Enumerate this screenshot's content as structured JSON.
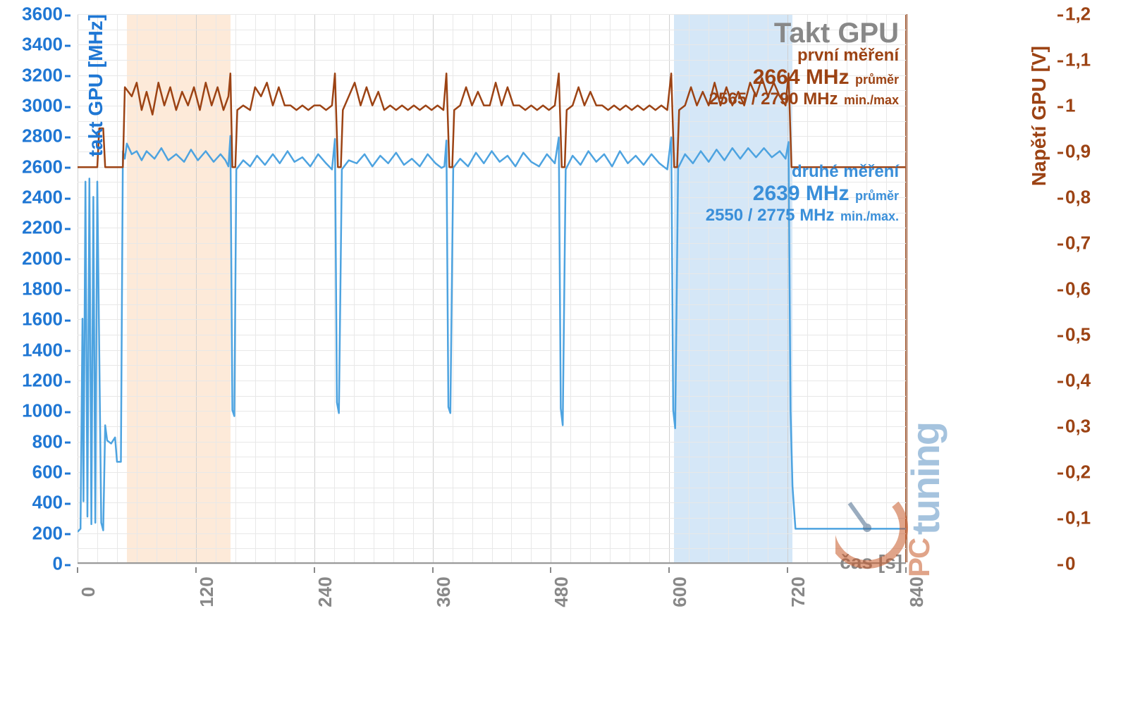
{
  "chart": {
    "type": "line",
    "title": "Takt GPU",
    "background_color": "#ffffff",
    "grid_color_minor": "#e8e8e8",
    "grid_color_major": "#d0d0d0",
    "x": {
      "label": "čas [s]",
      "min": 0,
      "max": 840,
      "major_step": 120,
      "minor_step": 20,
      "tick_color": "#888888",
      "tick_fontsize": 26
    },
    "y_left": {
      "label": "takt GPU [MHz]",
      "min": 0,
      "max": 3600,
      "step": 200,
      "minor_step": 100,
      "color": "#1f77d4",
      "tick_fontsize": 26
    },
    "y_right": {
      "label": "Napětí GPU [V]",
      "min": 0,
      "max": 1.2,
      "step": 0.1,
      "color": "#9c4314",
      "tick_fontsize": 26
    },
    "bands": [
      {
        "from": 50,
        "to": 155,
        "color": "rgba(250,195,145,0.35)"
      },
      {
        "from": 605,
        "to": 725,
        "color": "rgba(150,195,235,0.4)"
      }
    ],
    "annotations": {
      "first": {
        "color": "#9c4314",
        "heading": "první měření",
        "avg_value": "2664 MHz",
        "avg_label": "průměr",
        "range_value": "2565 / 2790 MHz",
        "range_label": "min./max"
      },
      "second": {
        "color": "#3a8fd9",
        "heading": "druhé měření",
        "avg_value": "2639 MHz",
        "avg_label": "průměr",
        "range_value": "2550 / 2775 MHz",
        "range_label": "min./max."
      }
    },
    "series_blue": {
      "name": "takt GPU (druhé)",
      "axis": "left",
      "color": "#4da3e0",
      "line_width": 2.5,
      "points": [
        [
          0,
          200
        ],
        [
          3,
          220
        ],
        [
          5,
          1600
        ],
        [
          6,
          400
        ],
        [
          8,
          2500
        ],
        [
          10,
          300
        ],
        [
          12,
          2520
        ],
        [
          14,
          250
        ],
        [
          16,
          2400
        ],
        [
          18,
          260
        ],
        [
          20,
          2500
        ],
        [
          24,
          260
        ],
        [
          26,
          210
        ],
        [
          28,
          900
        ],
        [
          30,
          800
        ],
        [
          34,
          780
        ],
        [
          38,
          820
        ],
        [
          40,
          660
        ],
        [
          44,
          660
        ],
        [
          46,
          2700
        ],
        [
          48,
          2650
        ],
        [
          50,
          2750
        ],
        [
          55,
          2680
        ],
        [
          60,
          2700
        ],
        [
          65,
          2640
        ],
        [
          70,
          2700
        ],
        [
          78,
          2650
        ],
        [
          85,
          2720
        ],
        [
          92,
          2640
        ],
        [
          100,
          2680
        ],
        [
          108,
          2630
        ],
        [
          115,
          2710
        ],
        [
          122,
          2640
        ],
        [
          130,
          2700
        ],
        [
          138,
          2630
        ],
        [
          145,
          2680
        ],
        [
          150,
          2640
        ],
        [
          153,
          2600
        ],
        [
          155,
          2800
        ],
        [
          157,
          1000
        ],
        [
          159,
          960
        ],
        [
          161,
          2580
        ],
        [
          168,
          2640
        ],
        [
          175,
          2600
        ],
        [
          182,
          2670
        ],
        [
          190,
          2610
        ],
        [
          198,
          2680
        ],
        [
          205,
          2620
        ],
        [
          213,
          2700
        ],
        [
          220,
          2630
        ],
        [
          228,
          2660
        ],
        [
          236,
          2600
        ],
        [
          244,
          2680
        ],
        [
          252,
          2620
        ],
        [
          258,
          2580
        ],
        [
          261,
          2780
        ],
        [
          263,
          1050
        ],
        [
          265,
          980
        ],
        [
          268,
          2580
        ],
        [
          275,
          2640
        ],
        [
          283,
          2620
        ],
        [
          291,
          2680
        ],
        [
          299,
          2600
        ],
        [
          307,
          2670
        ],
        [
          315,
          2620
        ],
        [
          323,
          2690
        ],
        [
          331,
          2610
        ],
        [
          339,
          2650
        ],
        [
          347,
          2600
        ],
        [
          355,
          2680
        ],
        [
          363,
          2620
        ],
        [
          369,
          2590
        ],
        [
          372,
          2600
        ],
        [
          374,
          2770
        ],
        [
          376,
          1020
        ],
        [
          378,
          980
        ],
        [
          381,
          2590
        ],
        [
          388,
          2650
        ],
        [
          396,
          2600
        ],
        [
          404,
          2690
        ],
        [
          412,
          2620
        ],
        [
          420,
          2700
        ],
        [
          428,
          2630
        ],
        [
          436,
          2670
        ],
        [
          444,
          2600
        ],
        [
          452,
          2690
        ],
        [
          460,
          2630
        ],
        [
          468,
          2600
        ],
        [
          476,
          2680
        ],
        [
          484,
          2620
        ],
        [
          488,
          2790
        ],
        [
          490,
          1010
        ],
        [
          492,
          900
        ],
        [
          495,
          2580
        ],
        [
          502,
          2670
        ],
        [
          510,
          2610
        ],
        [
          518,
          2700
        ],
        [
          526,
          2630
        ],
        [
          534,
          2680
        ],
        [
          542,
          2600
        ],
        [
          550,
          2700
        ],
        [
          558,
          2620
        ],
        [
          566,
          2670
        ],
        [
          574,
          2610
        ],
        [
          582,
          2680
        ],
        [
          590,
          2620
        ],
        [
          598,
          2580
        ],
        [
          602,
          2790
        ],
        [
          604,
          1000
        ],
        [
          606,
          880
        ],
        [
          609,
          2590
        ],
        [
          616,
          2680
        ],
        [
          624,
          2620
        ],
        [
          632,
          2700
        ],
        [
          640,
          2630
        ],
        [
          648,
          2710
        ],
        [
          656,
          2640
        ],
        [
          664,
          2720
        ],
        [
          672,
          2650
        ],
        [
          680,
          2720
        ],
        [
          688,
          2660
        ],
        [
          696,
          2720
        ],
        [
          704,
          2660
        ],
        [
          712,
          2700
        ],
        [
          718,
          2650
        ],
        [
          721,
          2760
        ],
        [
          723,
          1000
        ],
        [
          725,
          500
        ],
        [
          728,
          220
        ],
        [
          740,
          220
        ],
        [
          780,
          220
        ],
        [
          820,
          220
        ],
        [
          840,
          220
        ]
      ]
    },
    "series_brown": {
      "name": "napětí GPU",
      "axis": "right",
      "color": "#9c4314",
      "line_width": 2.5,
      "points": [
        [
          0,
          0.865
        ],
        [
          20,
          0.865
        ],
        [
          22,
          0.95
        ],
        [
          26,
          0.95
        ],
        [
          28,
          0.865
        ],
        [
          46,
          0.865
        ],
        [
          48,
          1.04
        ],
        [
          55,
          1.02
        ],
        [
          60,
          1.05
        ],
        [
          65,
          0.99
        ],
        [
          70,
          1.03
        ],
        [
          76,
          0.98
        ],
        [
          82,
          1.05
        ],
        [
          88,
          1.0
        ],
        [
          94,
          1.04
        ],
        [
          100,
          0.99
        ],
        [
          106,
          1.03
        ],
        [
          112,
          1.0
        ],
        [
          118,
          1.04
        ],
        [
          124,
          0.99
        ],
        [
          130,
          1.05
        ],
        [
          136,
          1.0
        ],
        [
          142,
          1.04
        ],
        [
          148,
          0.99
        ],
        [
          153,
          1.02
        ],
        [
          155,
          1.07
        ],
        [
          157,
          0.865
        ],
        [
          160,
          0.865
        ],
        [
          162,
          0.99
        ],
        [
          168,
          1.0
        ],
        [
          175,
          0.99
        ],
        [
          180,
          1.04
        ],
        [
          186,
          1.02
        ],
        [
          192,
          1.05
        ],
        [
          198,
          1.0
        ],
        [
          204,
          1.04
        ],
        [
          210,
          1.0
        ],
        [
          216,
          1.0
        ],
        [
          222,
          0.99
        ],
        [
          228,
          1.0
        ],
        [
          234,
          0.99
        ],
        [
          240,
          1.0
        ],
        [
          246,
          1.0
        ],
        [
          252,
          0.99
        ],
        [
          258,
          1.0
        ],
        [
          261,
          1.07
        ],
        [
          264,
          0.865
        ],
        [
          267,
          0.865
        ],
        [
          269,
          0.99
        ],
        [
          275,
          1.02
        ],
        [
          281,
          1.05
        ],
        [
          287,
          1.0
        ],
        [
          293,
          1.04
        ],
        [
          299,
          1.0
        ],
        [
          305,
          1.03
        ],
        [
          311,
          0.99
        ],
        [
          317,
          1.0
        ],
        [
          323,
          0.99
        ],
        [
          329,
          1.0
        ],
        [
          335,
          0.99
        ],
        [
          341,
          1.0
        ],
        [
          347,
          0.99
        ],
        [
          353,
          1.0
        ],
        [
          359,
          0.99
        ],
        [
          365,
          1.0
        ],
        [
          371,
          0.99
        ],
        [
          374,
          1.07
        ],
        [
          377,
          0.865
        ],
        [
          380,
          0.865
        ],
        [
          382,
          0.99
        ],
        [
          388,
          1.0
        ],
        [
          394,
          1.04
        ],
        [
          400,
          1.0
        ],
        [
          406,
          1.03
        ],
        [
          412,
          1.0
        ],
        [
          418,
          1.0
        ],
        [
          424,
          1.05
        ],
        [
          430,
          1.0
        ],
        [
          436,
          1.04
        ],
        [
          442,
          1.0
        ],
        [
          448,
          1.0
        ],
        [
          454,
          0.99
        ],
        [
          460,
          1.0
        ],
        [
          466,
          0.99
        ],
        [
          472,
          1.0
        ],
        [
          478,
          0.99
        ],
        [
          484,
          1.0
        ],
        [
          488,
          1.07
        ],
        [
          491,
          0.865
        ],
        [
          494,
          0.865
        ],
        [
          496,
          0.99
        ],
        [
          502,
          1.0
        ],
        [
          508,
          1.04
        ],
        [
          514,
          1.0
        ],
        [
          520,
          1.03
        ],
        [
          526,
          1.0
        ],
        [
          532,
          1.0
        ],
        [
          538,
          0.99
        ],
        [
          544,
          1.0
        ],
        [
          550,
          0.99
        ],
        [
          556,
          1.0
        ],
        [
          562,
          0.99
        ],
        [
          568,
          1.0
        ],
        [
          574,
          0.99
        ],
        [
          580,
          1.0
        ],
        [
          586,
          0.99
        ],
        [
          592,
          1.0
        ],
        [
          598,
          0.99
        ],
        [
          602,
          1.07
        ],
        [
          605,
          0.865
        ],
        [
          608,
          0.865
        ],
        [
          610,
          0.99
        ],
        [
          616,
          1.0
        ],
        [
          622,
          1.04
        ],
        [
          628,
          1.0
        ],
        [
          634,
          1.03
        ],
        [
          640,
          1.0
        ],
        [
          646,
          1.05
        ],
        [
          652,
          1.0
        ],
        [
          658,
          1.04
        ],
        [
          664,
          1.0
        ],
        [
          670,
          1.03
        ],
        [
          676,
          1.0
        ],
        [
          682,
          1.05
        ],
        [
          688,
          1.02
        ],
        [
          694,
          1.06
        ],
        [
          700,
          1.02
        ],
        [
          706,
          1.05
        ],
        [
          712,
          1.02
        ],
        [
          718,
          1.0
        ],
        [
          721,
          1.07
        ],
        [
          724,
          0.865
        ],
        [
          840,
          0.865
        ]
      ]
    },
    "watermark": {
      "text_pc": "PC",
      "text_tuning": "tuning",
      "color_pc": "#c85a2a",
      "color_tuning": "#5c93c4"
    }
  }
}
